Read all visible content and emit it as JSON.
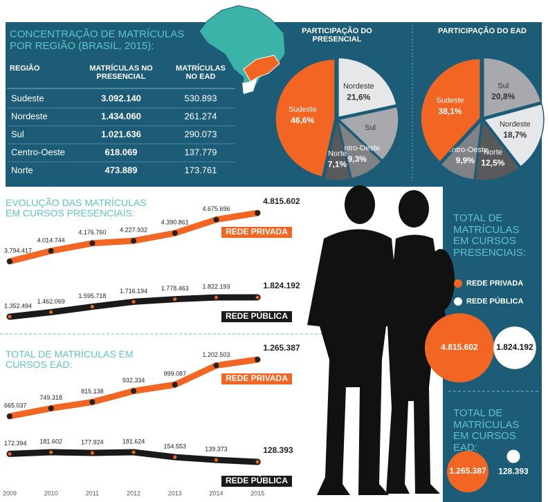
{
  "region_table": {
    "title": "CONCENTRAÇÃO DE MATRÍCULAS POR REGIÃO (BRASIL, 2015):",
    "header": [
      "REGIÃO",
      "MATRÍCULAS NO PRESENCIAL",
      "MATRÍCULAS NO EAD"
    ],
    "rows": [
      [
        "Sudeste",
        "3.092.140",
        "530.893"
      ],
      [
        "Nordeste",
        "1.434.060",
        "261.274"
      ],
      [
        "Sul",
        "1.021.636",
        "290.073"
      ],
      [
        "Centro-Oeste",
        "618.069",
        "137.779"
      ],
      [
        "Norte",
        "473.889",
        "173.761"
      ]
    ]
  },
  "chart_data": [
    {
      "type": "pie",
      "title": "PARTICIPAÇÃO DO PRESENCIAL",
      "categories": [
        "Nordeste",
        "Sul",
        "Centro-Oeste",
        "Norte",
        "Sudeste"
      ],
      "values": [
        21.6,
        15.4,
        9.3,
        7.1,
        46.6
      ],
      "value_labels": [
        "21,6%",
        null,
        "9,3%",
        "7,1%",
        "46,6%"
      ],
      "colors": [
        "#e6e7e8",
        "#a7a9ac",
        "#808285",
        "#58595b",
        "#f26522"
      ]
    },
    {
      "type": "pie",
      "title": "PARTICIPAÇÃO DO EAD",
      "categories": [
        "Sul",
        "Nordeste",
        "Norte",
        "Centro-Oeste",
        "Sudeste"
      ],
      "values": [
        20.8,
        18.7,
        12.5,
        9.9,
        38.1
      ],
      "value_labels": [
        "20,8%",
        "18,7%",
        "12,5%",
        "9,9%",
        "38,1%"
      ],
      "colors": [
        "#a7a9ac",
        "#e6e7e8",
        "#58595b",
        "#808285",
        "#f26522"
      ]
    },
    {
      "type": "line",
      "title": "EVOLUÇÃO DAS MATRÍCULAS EM CURSOS PRESENCIAIS:",
      "series": [
        {
          "name": "REDE PRIVADA",
          "color": "#f26522",
          "values": [
            3794417,
            4014744,
            4176760,
            4227932,
            4390861,
            4675696,
            4815602
          ],
          "value_labels": [
            "3.794.417",
            "4.014.744",
            "4.176.760",
            "4.227.932",
            "4.390.861",
            "4.675.696",
            "4.815.602"
          ]
        },
        {
          "name": "REDE PÚBLICA",
          "color": "#1a1a1a",
          "values": [
            1352494,
            1462069,
            1595718,
            1716194,
            1778463,
            1822193,
            1824192
          ],
          "value_labels": [
            "1.352.494",
            "1.462.069",
            "1.595.718",
            "1.716.194",
            "1.778.463",
            "1.822.193",
            "1.824.192"
          ]
        }
      ]
    },
    {
      "type": "line",
      "title": "TOTAL DE MATRÍCULAS EM CURSOS EAD:",
      "categories": [
        "2009",
        "2010",
        "2011",
        "2012",
        "2013",
        "2014",
        "2015"
      ],
      "series": [
        {
          "name": "REDE PRIVADA",
          "color": "#f26522",
          "values": [
            665037,
            749318,
            815138,
            932334,
            999087,
            1202503,
            1265387
          ],
          "value_labels": [
            "665.037",
            "749.318",
            "815.138",
            "932.334",
            "999.087",
            "1.202.503",
            "1.265.387"
          ]
        },
        {
          "name": "REDE PÚBLICA",
          "color": "#1a1a1a",
          "values": [
            172394,
            181602,
            177924,
            181624,
            154553,
            139373,
            128393
          ],
          "value_labels": [
            "172.394",
            "181.602",
            "177.924",
            "181.624",
            "154.553",
            "139.373",
            "128.393"
          ]
        }
      ]
    },
    {
      "type": "bubble",
      "title": "TOTAL DE MATRÍCULAS EM CURSOS PRESENCIAIS:",
      "categories": [
        "REDE PRIVADA",
        "REDE PÚBLICA"
      ],
      "values": [
        4815602,
        1824192
      ],
      "value_labels": [
        "4.815.602",
        "1.824.192"
      ],
      "colors": [
        "#f26522",
        "#ffffff"
      ]
    },
    {
      "type": "bubble",
      "title": "TOTAL DE MATRÍCULAS EM CURSOS EAD:",
      "values": [
        1265387,
        128393
      ],
      "value_labels": [
        "1.265.387",
        "128.393"
      ],
      "colors": [
        "#f26522",
        "#ffffff"
      ]
    }
  ]
}
